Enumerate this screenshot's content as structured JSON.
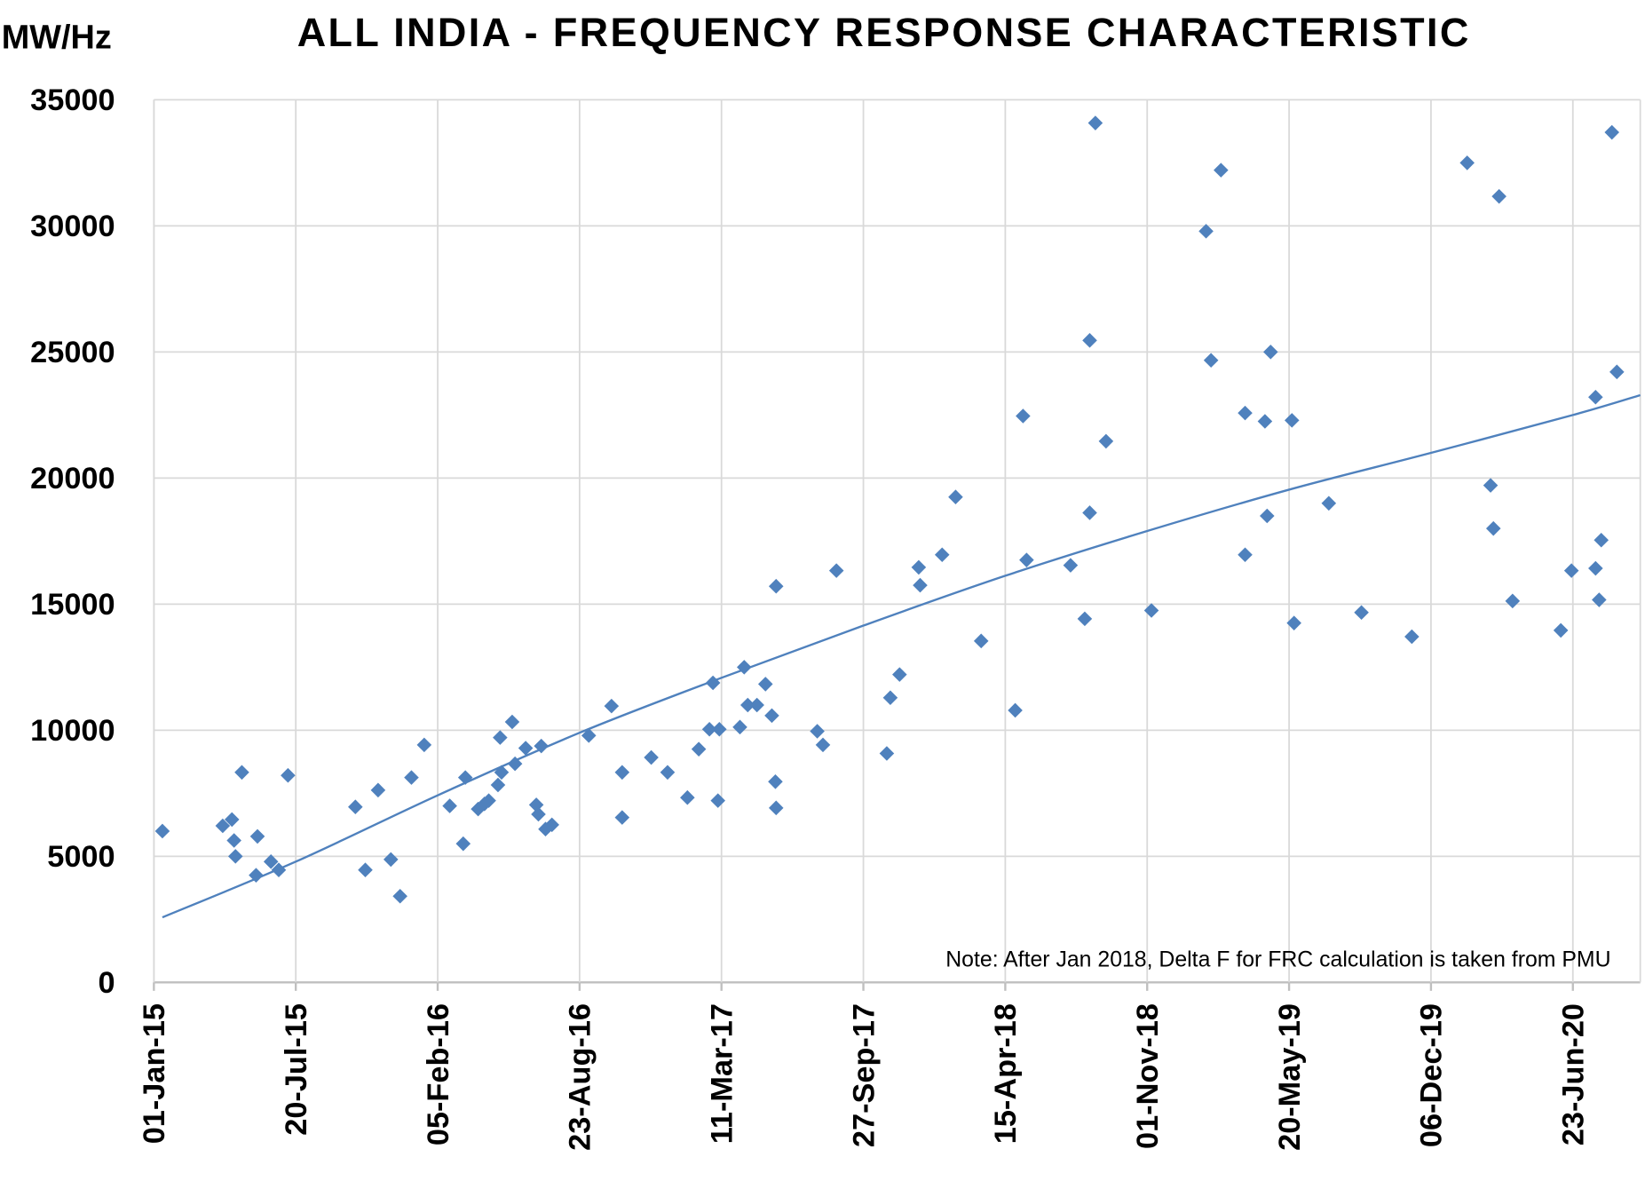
{
  "chart_data": {
    "type": "scatter",
    "title": "ALL INDIA - FREQUENCY RESPONSE CHARACTERISTIC",
    "ylabel": "MW/Hz",
    "xlabel": "",
    "ylim": [
      0,
      35000
    ],
    "yticks": [
      "0",
      "5000",
      "10000",
      "15000",
      "20000",
      "25000",
      "30000",
      "35000"
    ],
    "xlim": [
      "2015-01-01",
      "2020-09-26"
    ],
    "xticks": [
      {
        "date": "2015-01-01",
        "label": "01-Jan-15"
      },
      {
        "date": "2015-07-20",
        "label": "20-Jul-15"
      },
      {
        "date": "2016-02-05",
        "label": "05-Feb-16"
      },
      {
        "date": "2016-08-23",
        "label": "23-Aug-16"
      },
      {
        "date": "2017-03-11",
        "label": "11-Mar-17"
      },
      {
        "date": "2017-09-27",
        "label": "27-Sep-17"
      },
      {
        "date": "2018-04-15",
        "label": "15-Apr-18"
      },
      {
        "date": "2018-11-01",
        "label": "01-Nov-18"
      },
      {
        "date": "2019-05-20",
        "label": "20-May-19"
      },
      {
        "date": "2019-12-06",
        "label": "06-Dec-19"
      },
      {
        "date": "2020-06-23",
        "label": "23-Jun-20"
      }
    ],
    "grid": true,
    "marker": "diamond",
    "color": "#4F81BD",
    "annotation": "Note: After Jan 2018, Delta F for FRC calculation is taken from PMU",
    "points": [
      [
        "2015-01-13",
        6000
      ],
      [
        "2015-04-08",
        6210
      ],
      [
        "2015-04-21",
        6460
      ],
      [
        "2015-04-24",
        5630
      ],
      [
        "2015-04-26",
        5000
      ],
      [
        "2015-05-05",
        8330
      ],
      [
        "2015-05-25",
        4250
      ],
      [
        "2015-05-27",
        5790
      ],
      [
        "2015-06-15",
        4790
      ],
      [
        "2015-06-26",
        4460
      ],
      [
        "2015-07-09",
        8210
      ],
      [
        "2015-10-12",
        6960
      ],
      [
        "2015-10-26",
        4460
      ],
      [
        "2015-11-13",
        7625
      ],
      [
        "2015-12-01",
        4875
      ],
      [
        "2015-12-14",
        3420
      ],
      [
        "2015-12-30",
        8125
      ],
      [
        "2016-01-17",
        9420
      ],
      [
        "2016-02-22",
        7000
      ],
      [
        "2016-03-12",
        5500
      ],
      [
        "2016-03-15",
        8125
      ],
      [
        "2016-04-02",
        6875
      ],
      [
        "2016-04-11",
        7080
      ],
      [
        "2016-04-17",
        7210
      ],
      [
        "2016-04-30",
        7830
      ],
      [
        "2016-05-03",
        9710
      ],
      [
        "2016-05-05",
        8330
      ],
      [
        "2016-05-20",
        10330
      ],
      [
        "2016-05-24",
        8670
      ],
      [
        "2016-06-08",
        9290
      ],
      [
        "2016-06-23",
        7040
      ],
      [
        "2016-06-26",
        6670
      ],
      [
        "2016-06-30",
        9375
      ],
      [
        "2016-07-06",
        6080
      ],
      [
        "2016-07-15",
        6250
      ],
      [
        "2016-09-05",
        9790
      ],
      [
        "2016-10-07",
        10960
      ],
      [
        "2016-10-22",
        8330
      ],
      [
        "2016-10-22",
        6540
      ],
      [
        "2016-12-02",
        8920
      ],
      [
        "2016-12-25",
        8330
      ],
      [
        "2017-01-22",
        7330
      ],
      [
        "2017-02-07",
        9250
      ],
      [
        "2017-02-22",
        10040
      ],
      [
        "2017-02-27",
        11880
      ],
      [
        "2017-03-08",
        10040
      ],
      [
        "2017-03-06",
        7210
      ],
      [
        "2017-04-06",
        10125
      ],
      [
        "2017-04-12",
        12500
      ],
      [
        "2017-04-17",
        11000
      ],
      [
        "2017-04-30",
        11000
      ],
      [
        "2017-05-12",
        11830
      ],
      [
        "2017-05-21",
        10580
      ],
      [
        "2017-05-26",
        7960
      ],
      [
        "2017-05-27",
        15710
      ],
      [
        "2017-05-27",
        6920
      ],
      [
        "2017-07-24",
        9960
      ],
      [
        "2017-08-01",
        9420
      ],
      [
        "2017-08-20",
        16330
      ],
      [
        "2017-10-30",
        9080
      ],
      [
        "2017-11-04",
        11290
      ],
      [
        "2017-11-17",
        12210
      ],
      [
        "2017-12-14",
        16460
      ],
      [
        "2017-12-16",
        15750
      ],
      [
        "2018-01-16",
        16960
      ],
      [
        "2018-02-04",
        19250
      ],
      [
        "2018-03-12",
        13540
      ],
      [
        "2018-04-29",
        10790
      ],
      [
        "2018-05-10",
        22460
      ],
      [
        "2018-05-15",
        16750
      ],
      [
        "2018-07-16",
        16540
      ],
      [
        "2018-08-05",
        14420
      ],
      [
        "2018-08-12",
        25460
      ],
      [
        "2018-08-12",
        18625
      ],
      [
        "2018-08-20",
        34080
      ],
      [
        "2018-09-04",
        21460
      ],
      [
        "2018-11-07",
        14750
      ],
      [
        "2019-01-23",
        29790
      ],
      [
        "2019-01-30",
        24670
      ],
      [
        "2019-02-13",
        32210
      ],
      [
        "2019-03-19",
        22580
      ],
      [
        "2019-03-19",
        16960
      ],
      [
        "2019-04-16",
        22250
      ],
      [
        "2019-04-19",
        18500
      ],
      [
        "2019-04-24",
        25000
      ],
      [
        "2019-05-24",
        22290
      ],
      [
        "2019-05-27",
        14250
      ],
      [
        "2019-07-15",
        19000
      ],
      [
        "2019-08-30",
        14670
      ],
      [
        "2019-11-09",
        13710
      ],
      [
        "2020-01-26",
        32500
      ],
      [
        "2020-02-28",
        19710
      ],
      [
        "2020-03-03",
        18000
      ],
      [
        "2020-03-11",
        31170
      ],
      [
        "2020-03-30",
        15125
      ],
      [
        "2020-06-06",
        13960
      ],
      [
        "2020-06-21",
        16330
      ],
      [
        "2020-07-25",
        23210
      ],
      [
        "2020-07-25",
        16420
      ],
      [
        "2020-07-30",
        15170
      ],
      [
        "2020-08-02",
        17540
      ],
      [
        "2020-08-17",
        33710
      ],
      [
        "2020-08-24",
        24210
      ]
    ],
    "trendline": {
      "type": "polynomial",
      "points": [
        [
          "2015-01-13",
          2580
        ],
        [
          "2015-07-20",
          4790
        ],
        [
          "2016-02-05",
          7420
        ],
        [
          "2016-08-23",
          9900
        ],
        [
          "2017-03-11",
          12080
        ],
        [
          "2017-09-27",
          14150
        ],
        [
          "2018-04-15",
          16125
        ],
        [
          "2018-11-01",
          17900
        ],
        [
          "2019-05-20",
          19540
        ],
        [
          "2019-12-06",
          21000
        ],
        [
          "2020-06-23",
          22500
        ],
        [
          "2020-09-26",
          23290
        ]
      ]
    }
  }
}
